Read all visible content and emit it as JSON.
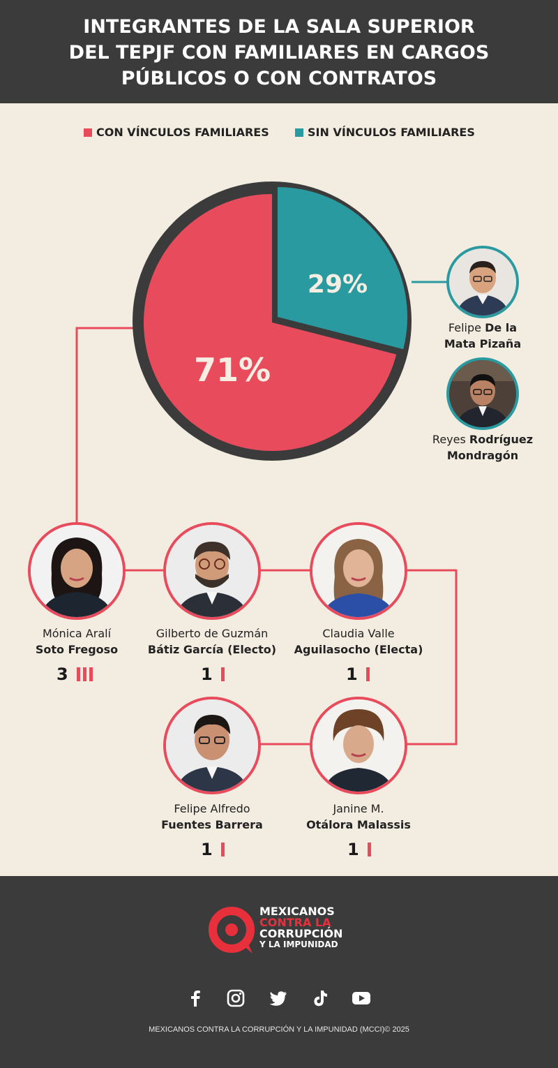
{
  "header": {
    "title_lines": [
      "INTEGRANTES DE LA SALA SUPERIOR",
      "DEL TEPJF CON FAMILIARES EN CARGOS",
      "PÚBLICOS O CON CONTRATOS"
    ]
  },
  "colors": {
    "with_ties": "#e84b5c",
    "without_ties": "#2a9aa1",
    "outline": "#3b3b3b"
  },
  "chart_data": {
    "type": "pie",
    "title": "INTEGRANTES DE LA SALA SUPERIOR DEL TEPJF CON FAMILIARES EN CARGOS PÚBLICOS O CON CONTRATOS",
    "legend_position": "top",
    "slices": [
      {
        "label": "CON VÍNCULOS FAMILIARES",
        "value": 71,
        "display": "71%",
        "color": "#e84b5c"
      },
      {
        "label": "SIN VÍNCULOS FAMILIARES",
        "value": 29,
        "display": "29%",
        "color": "#2a9aa1"
      }
    ]
  },
  "legend": {
    "with_ties": "CON VÍNCULOS FAMILIARES",
    "without_ties": "SIN VÍNCULOS FAMILIARES"
  },
  "without_ties_members": [
    {
      "first": "Felipe ",
      "last_bold": "De la",
      "second_line": "Mata Pizaña"
    },
    {
      "first": "Reyes ",
      "last_bold": "Rodríguez",
      "second_line": "Mondragón"
    }
  ],
  "with_ties_members": [
    {
      "first": "Mónica Aralí",
      "last": "Soto Fregoso",
      "count": 3
    },
    {
      "first": "Gilberto de Guzmán",
      "last": "Bátiz García (Electo)",
      "count": 1
    },
    {
      "first": "Claudia Valle",
      "last": "Aguilasocho (Electa)",
      "count": 1
    },
    {
      "first": "Felipe Alfredo",
      "last": "Fuentes Barrera",
      "count": 1
    },
    {
      "first": "Janine M.",
      "last": "Otálora Malassis",
      "count": 1
    }
  ],
  "footer": {
    "logo_lines": [
      "MEXICANOS",
      "CONTRA LA",
      "CORRUPCIÓN",
      "Y LA IMPUNIDAD"
    ],
    "social_icons": [
      "facebook-icon",
      "instagram-icon",
      "twitter-icon",
      "tiktok-icon",
      "youtube-icon"
    ],
    "copyright": "MEXICANOS CONTRA LA CORRUPCIÓN Y LA IMPUNIDAD (MCCI)© 2025"
  }
}
